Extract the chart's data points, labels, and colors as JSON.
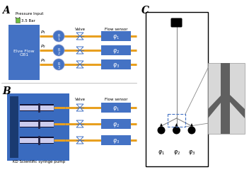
{
  "bg_color": "#ffffff",
  "panel_A_label": "A",
  "panel_B_label": "B",
  "panel_C_label": "C",
  "blue_color": "#4472c4",
  "blue_mid": "#3a6bbf",
  "orange_color": "#e8a020",
  "green_color": "#70c040",
  "pressure_text": "Pressure Input",
  "bar_text": "3.5 Bar",
  "valve_label": "Valve",
  "flow_label": "Flow sensor",
  "elve_text": "Elve Flow\nOB1",
  "kd_text": "KD Scientific syringe pump",
  "syringe_bg": "#3a6bbf",
  "syringe_dark": "#1a3a70",
  "phi_labels": [
    "φ₁",
    "φ₂",
    "φ₃"
  ],
  "P_labels": [
    "P₁",
    "P₂",
    "P₃"
  ],
  "R_labels": [
    "R₁",
    "R₂",
    "R₃"
  ]
}
